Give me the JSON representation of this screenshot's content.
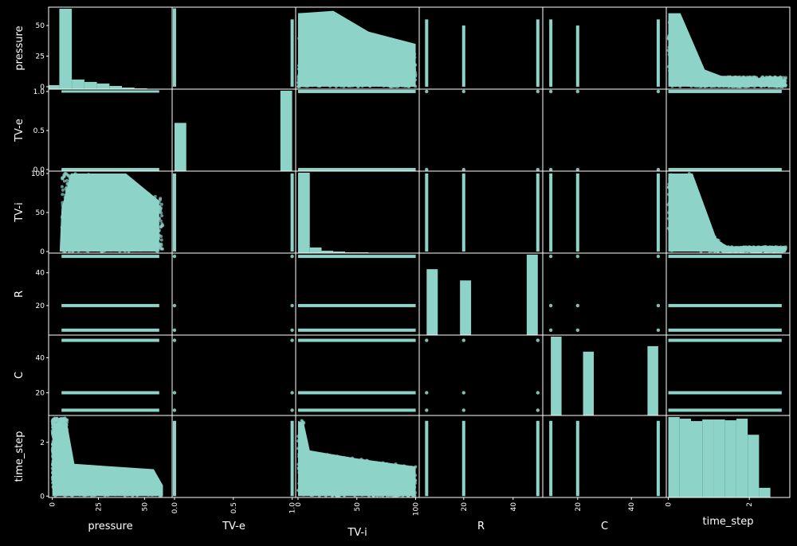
{
  "chart_data": {
    "type": "scatter",
    "variables": [
      "pressure",
      "TV-e",
      "TV-i",
      "R",
      "C",
      "time_step"
    ],
    "axis_labels": [
      "pressure",
      "TV-e",
      "TV-i",
      "R",
      "C",
      "time_step"
    ],
    "ranges": {
      "pressure": [
        -2,
        65
      ],
      "TV-e": [
        -0.02,
        1.03
      ],
      "TV-i": [
        -2,
        103
      ],
      "R": [
        2,
        52
      ],
      "C": [
        7,
        53
      ],
      "time_step": [
        -0.05,
        3.0
      ]
    },
    "ticks": {
      "pressure": [
        0,
        25,
        50
      ],
      "TV-e": [
        0.0,
        0.5,
        1.0
      ],
      "TV-i": [
        0,
        50,
        100
      ],
      "R": [
        20,
        40
      ],
      "C": [
        20,
        40
      ],
      "time_step": [
        0,
        2
      ]
    },
    "tick_labels": {
      "pressure": [
        "0",
        "25",
        "50"
      ],
      "TV-e": [
        "0.0",
        "0.5",
        "1.0"
      ],
      "TV-i": [
        "0",
        "50",
        "100"
      ],
      "R": [
        "20",
        "40"
      ],
      "C": [
        "20",
        "40"
      ],
      "time_step": [
        "0",
        "2"
      ]
    },
    "histograms": {
      "pressure": {
        "bins": [
          -3,
          3.8,
          10.6,
          17.4,
          24.2,
          31,
          37.8,
          44.6,
          51.4,
          58.2,
          65
        ],
        "counts": [
          5,
          100,
          12,
          9,
          7,
          4,
          2,
          1,
          0.5,
          0.2
        ]
      },
      "TV-e": {
        "bins": [
          0,
          0.1,
          0.2,
          0.3,
          0.4,
          0.5,
          0.6,
          0.7,
          0.8,
          0.9,
          1.0
        ],
        "counts": [
          60,
          0,
          0,
          0,
          0,
          0,
          0,
          0,
          0,
          100
        ]
      },
      "TV-i": {
        "bins": [
          0,
          10,
          20,
          30,
          40,
          50,
          60,
          70,
          80,
          90,
          100
        ],
        "counts": [
          100,
          7,
          3,
          2,
          1,
          1,
          0.5,
          0.5,
          0.3,
          0.2
        ]
      },
      "R": {
        "bins": [
          5,
          9.5,
          14,
          18.5,
          23,
          27.5,
          32,
          36.5,
          41,
          45.5,
          50
        ],
        "counts": [
          82,
          0,
          0,
          68,
          0,
          0,
          0,
          0,
          0,
          100
        ]
      },
      "C": {
        "bins": [
          10,
          14,
          18,
          22,
          26,
          30,
          34,
          38,
          42,
          46,
          50
        ],
        "counts": [
          100,
          0,
          0,
          81,
          0,
          0,
          0,
          0,
          0,
          88
        ]
      },
      "time_step": {
        "bins": [
          0,
          0.28,
          0.56,
          0.84,
          1.12,
          1.4,
          1.68,
          1.96,
          2.24,
          2.52,
          2.8
        ],
        "counts": [
          100,
          98,
          95,
          97,
          97,
          96,
          98,
          78,
          12,
          0
        ]
      }
    },
    "discrete_levels": {
      "TV-e": [
        0,
        1
      ],
      "R": [
        5,
        20,
        50
      ],
      "C": [
        10,
        20,
        50
      ]
    },
    "marker_color": "#8dd3c7",
    "background": "#000000",
    "grid": false,
    "legend": "none"
  }
}
